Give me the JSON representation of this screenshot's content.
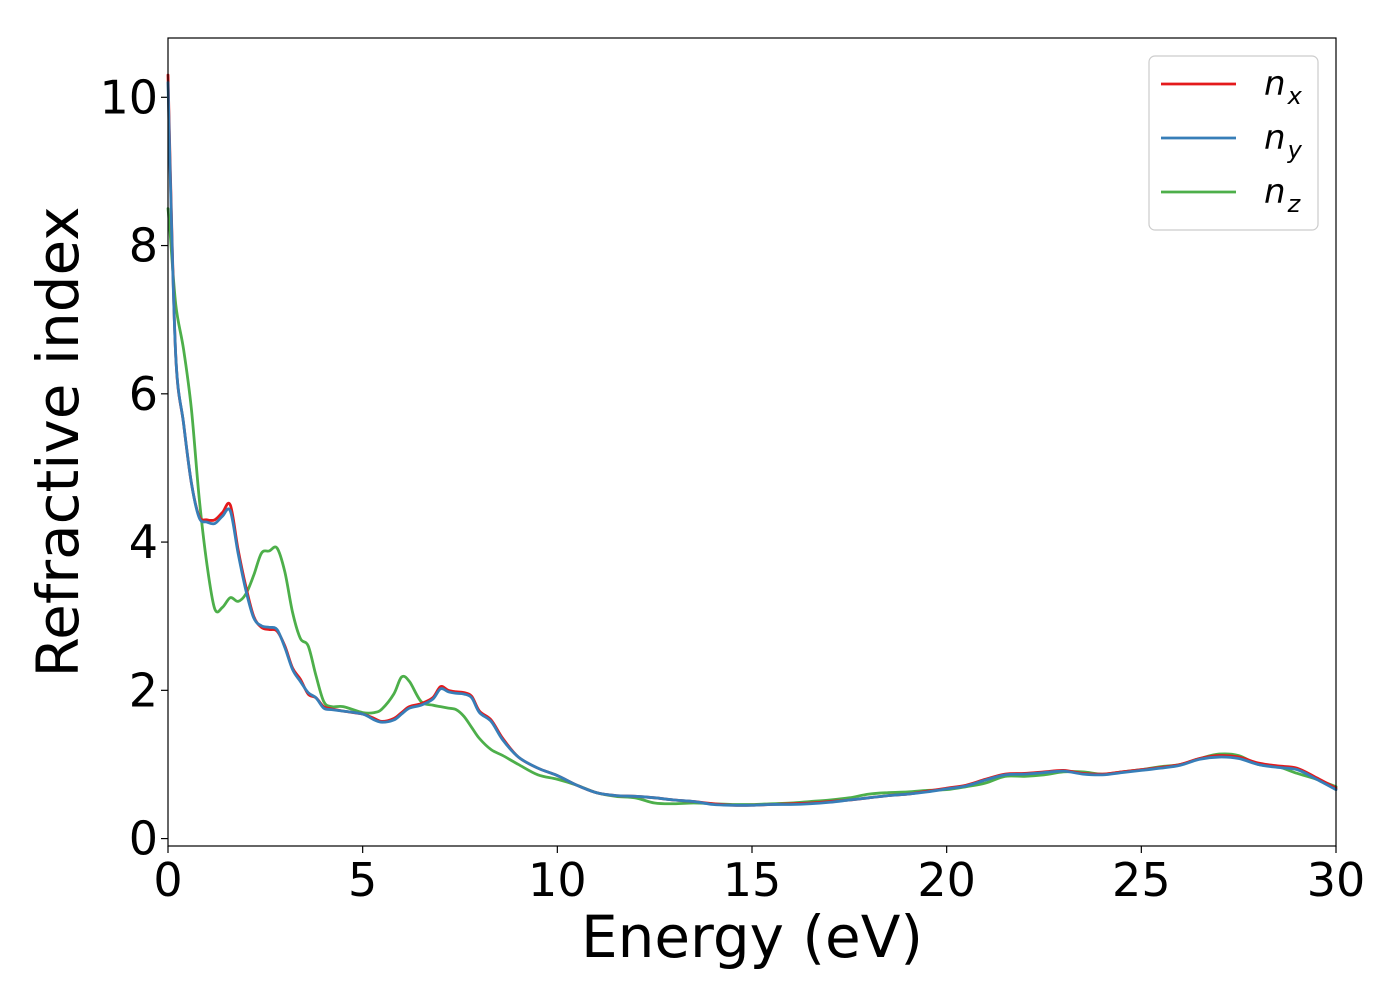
{
  "chart_data": {
    "type": "line",
    "xlabel": "Energy (eV)",
    "ylabel": "Refractive index",
    "xlim": [
      0,
      30
    ],
    "ylim": [
      -0.1,
      10.8
    ],
    "xticks": [
      0,
      5,
      10,
      15,
      20,
      25,
      30
    ],
    "yticks": [
      0,
      2,
      4,
      6,
      8,
      10
    ],
    "xtick_labels": [
      "0",
      "5",
      "10",
      "15",
      "20",
      "25",
      "30"
    ],
    "ytick_labels": [
      "0",
      "2",
      "4",
      "6",
      "8",
      "10"
    ],
    "grid": false,
    "legend_position": "top-right",
    "series": [
      {
        "name": "n_x",
        "legend_base": "n",
        "legend_sub": "x",
        "color": "#e41a1c",
        "x": [
          0,
          0.05,
          0.2,
          0.4,
          0.6,
          0.8,
          1.0,
          1.2,
          1.4,
          1.6,
          1.8,
          2.0,
          2.2,
          2.4,
          2.6,
          2.8,
          3.0,
          3.2,
          3.4,
          3.6,
          3.8,
          4.0,
          4.2,
          4.5,
          5.0,
          5.3,
          5.5,
          5.8,
          6.0,
          6.2,
          6.5,
          6.8,
          7.0,
          7.2,
          7.4,
          7.6,
          7.8,
          8.0,
          8.3,
          8.6,
          9.0,
          9.5,
          10.0,
          10.5,
          11.0,
          11.5,
          12.0,
          12.5,
          13.0,
          13.5,
          14.0,
          14.5,
          15.0,
          15.5,
          16.0,
          16.5,
          17.0,
          17.5,
          18.0,
          18.5,
          19.0,
          19.5,
          20.0,
          20.5,
          21.0,
          21.5,
          22.0,
          22.5,
          23.0,
          23.5,
          24.0,
          24.5,
          25.0,
          25.5,
          26.0,
          26.5,
          27.0,
          27.5,
          28.0,
          28.5,
          29.0,
          29.5,
          30.0
        ],
        "y": [
          10.3,
          9.2,
          6.5,
          5.6,
          4.8,
          4.35,
          4.3,
          4.3,
          4.4,
          4.5,
          3.9,
          3.4,
          3.0,
          2.85,
          2.82,
          2.8,
          2.6,
          2.3,
          2.15,
          1.95,
          1.9,
          1.78,
          1.75,
          1.72,
          1.68,
          1.62,
          1.58,
          1.62,
          1.7,
          1.78,
          1.82,
          1.9,
          2.05,
          2.0,
          1.98,
          1.97,
          1.92,
          1.72,
          1.6,
          1.35,
          1.1,
          0.95,
          0.85,
          0.72,
          0.62,
          0.58,
          0.57,
          0.55,
          0.52,
          0.5,
          0.47,
          0.45,
          0.45,
          0.46,
          0.47,
          0.48,
          0.5,
          0.52,
          0.55,
          0.58,
          0.6,
          0.64,
          0.68,
          0.72,
          0.8,
          0.87,
          0.88,
          0.9,
          0.92,
          0.88,
          0.87,
          0.9,
          0.93,
          0.96,
          1.0,
          1.08,
          1.12,
          1.1,
          1.02,
          0.98,
          0.95,
          0.82,
          0.68
        ]
      },
      {
        "name": "n_y",
        "legend_base": "n",
        "legend_sub": "y",
        "color": "#377eb8",
        "x": [
          0,
          0.05,
          0.2,
          0.4,
          0.6,
          0.8,
          1.0,
          1.2,
          1.4,
          1.6,
          1.8,
          2.0,
          2.2,
          2.4,
          2.6,
          2.8,
          3.0,
          3.2,
          3.4,
          3.6,
          3.8,
          4.0,
          4.2,
          4.5,
          5.0,
          5.3,
          5.5,
          5.8,
          6.0,
          6.2,
          6.5,
          6.8,
          7.0,
          7.2,
          7.4,
          7.6,
          7.8,
          8.0,
          8.3,
          8.6,
          9.0,
          9.5,
          10.0,
          10.5,
          11.0,
          11.5,
          12.0,
          12.5,
          13.0,
          13.5,
          14.0,
          14.5,
          15.0,
          15.5,
          16.0,
          16.5,
          17.0,
          17.5,
          18.0,
          18.5,
          19.0,
          19.5,
          20.0,
          20.5,
          21.0,
          21.5,
          22.0,
          22.5,
          23.0,
          23.5,
          24.0,
          24.5,
          25.0,
          25.5,
          26.0,
          26.5,
          27.0,
          27.5,
          28.0,
          28.5,
          29.0,
          29.5,
          30.0
        ],
        "y": [
          10.2,
          9.1,
          6.5,
          5.6,
          4.8,
          4.33,
          4.27,
          4.25,
          4.35,
          4.42,
          3.85,
          3.35,
          2.98,
          2.87,
          2.85,
          2.82,
          2.58,
          2.28,
          2.12,
          1.97,
          1.9,
          1.76,
          1.74,
          1.72,
          1.68,
          1.6,
          1.57,
          1.6,
          1.68,
          1.76,
          1.8,
          1.88,
          2.02,
          1.98,
          1.96,
          1.95,
          1.9,
          1.7,
          1.58,
          1.33,
          1.1,
          0.95,
          0.85,
          0.72,
          0.62,
          0.58,
          0.57,
          0.55,
          0.52,
          0.5,
          0.46,
          0.45,
          0.45,
          0.46,
          0.46,
          0.47,
          0.49,
          0.52,
          0.55,
          0.58,
          0.6,
          0.63,
          0.67,
          0.71,
          0.79,
          0.86,
          0.87,
          0.89,
          0.91,
          0.87,
          0.86,
          0.89,
          0.92,
          0.95,
          0.99,
          1.07,
          1.1,
          1.08,
          1.0,
          0.96,
          0.93,
          0.8,
          0.66
        ]
      },
      {
        "name": "n_z",
        "legend_base": "n",
        "legend_sub": "z",
        "color": "#4daf4a",
        "x": [
          0,
          0.05,
          0.2,
          0.4,
          0.6,
          0.8,
          1.0,
          1.2,
          1.4,
          1.6,
          1.8,
          2.0,
          2.2,
          2.4,
          2.6,
          2.8,
          3.0,
          3.2,
          3.4,
          3.6,
          3.8,
          4.0,
          4.2,
          4.5,
          5.0,
          5.3,
          5.5,
          5.8,
          6.0,
          6.2,
          6.5,
          6.8,
          7.0,
          7.2,
          7.4,
          7.6,
          7.8,
          8.0,
          8.3,
          8.6,
          9.0,
          9.5,
          10.0,
          10.5,
          11.0,
          11.5,
          12.0,
          12.5,
          13.0,
          13.5,
          14.0,
          14.5,
          15.0,
          15.5,
          16.0,
          16.5,
          17.0,
          17.5,
          18.0,
          18.5,
          19.0,
          19.5,
          20.0,
          20.5,
          21.0,
          21.5,
          22.0,
          22.5,
          23.0,
          23.5,
          24.0,
          24.5,
          25.0,
          25.5,
          26.0,
          26.5,
          27.0,
          27.5,
          28.0,
          28.5,
          29.0,
          29.5,
          30.0
        ],
        "y": [
          8.5,
          8.2,
          7.2,
          6.6,
          5.8,
          4.6,
          3.7,
          3.1,
          3.12,
          3.25,
          3.2,
          3.3,
          3.55,
          3.85,
          3.88,
          3.92,
          3.6,
          3.05,
          2.7,
          2.6,
          2.2,
          1.85,
          1.78,
          1.78,
          1.7,
          1.7,
          1.75,
          1.95,
          2.18,
          2.12,
          1.85,
          1.8,
          1.78,
          1.76,
          1.74,
          1.65,
          1.5,
          1.35,
          1.2,
          1.12,
          1.0,
          0.86,
          0.8,
          0.72,
          0.62,
          0.57,
          0.55,
          0.48,
          0.47,
          0.48,
          0.47,
          0.46,
          0.46,
          0.47,
          0.48,
          0.5,
          0.52,
          0.55,
          0.6,
          0.62,
          0.63,
          0.65,
          0.66,
          0.7,
          0.75,
          0.84,
          0.84,
          0.86,
          0.9,
          0.9,
          0.87,
          0.9,
          0.93,
          0.97,
          1.0,
          1.08,
          1.14,
          1.12,
          1.0,
          0.97,
          0.88,
          0.8,
          0.7
        ]
      }
    ]
  }
}
